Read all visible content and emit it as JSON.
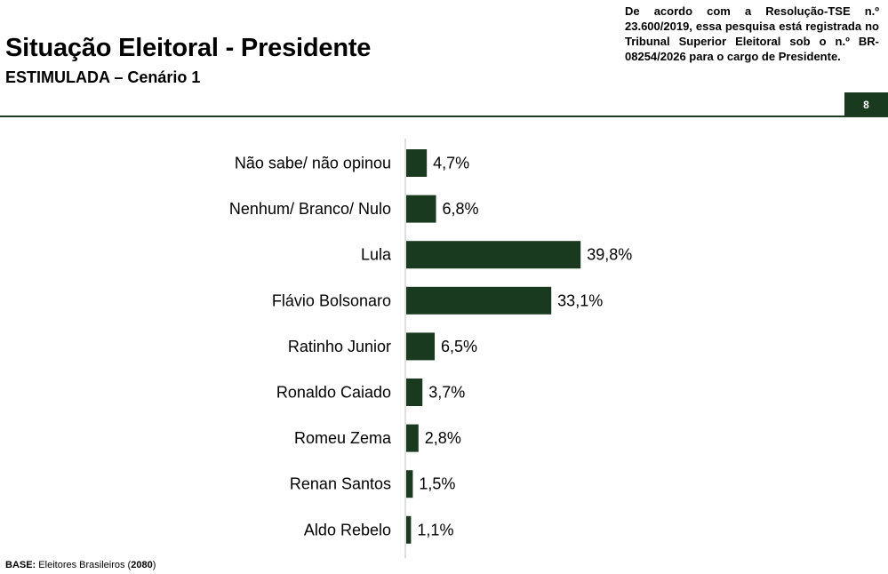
{
  "header": {
    "title": "Situação Eleitoral - Presidente",
    "subtitle": "ESTIMULADA – Cenário 1",
    "registration_note": "De acordo com a Resolução-TSE n.º 23.600/2019, essa pesquisa está registrada no Tribunal Superior Eleitoral sob o n.º BR-08254/2026 para o cargo de Presidente.",
    "page_number": "8"
  },
  "footer": {
    "base_label": "BASE:",
    "base_text": "Eleitores Brasileiros",
    "base_count": "2080"
  },
  "colors": {
    "bar": "#1a3a20",
    "accent": "#1f3a24"
  },
  "chart_data": {
    "type": "bar",
    "orientation": "horizontal",
    "categories": [
      "Não sabe/ não opinou",
      "Nenhum/ Branco/ Nulo",
      "Lula",
      "Flávio Bolsonaro",
      "Ratinho Junior",
      "Ronaldo Caiado",
      "Romeu Zema",
      "Renan Santos",
      "Aldo Rebelo"
    ],
    "values": [
      4.7,
      6.8,
      39.8,
      33.1,
      6.5,
      3.7,
      2.8,
      1.5,
      1.1
    ],
    "value_labels": [
      "4,7%",
      "6,8%",
      "39,8%",
      "33,1%",
      "6,5%",
      "3,7%",
      "2,8%",
      "1,5%",
      "1,1%"
    ],
    "title": "",
    "xlabel": "",
    "ylabel": "",
    "xlim": [
      0,
      40
    ],
    "grid": false,
    "legend": "none"
  }
}
